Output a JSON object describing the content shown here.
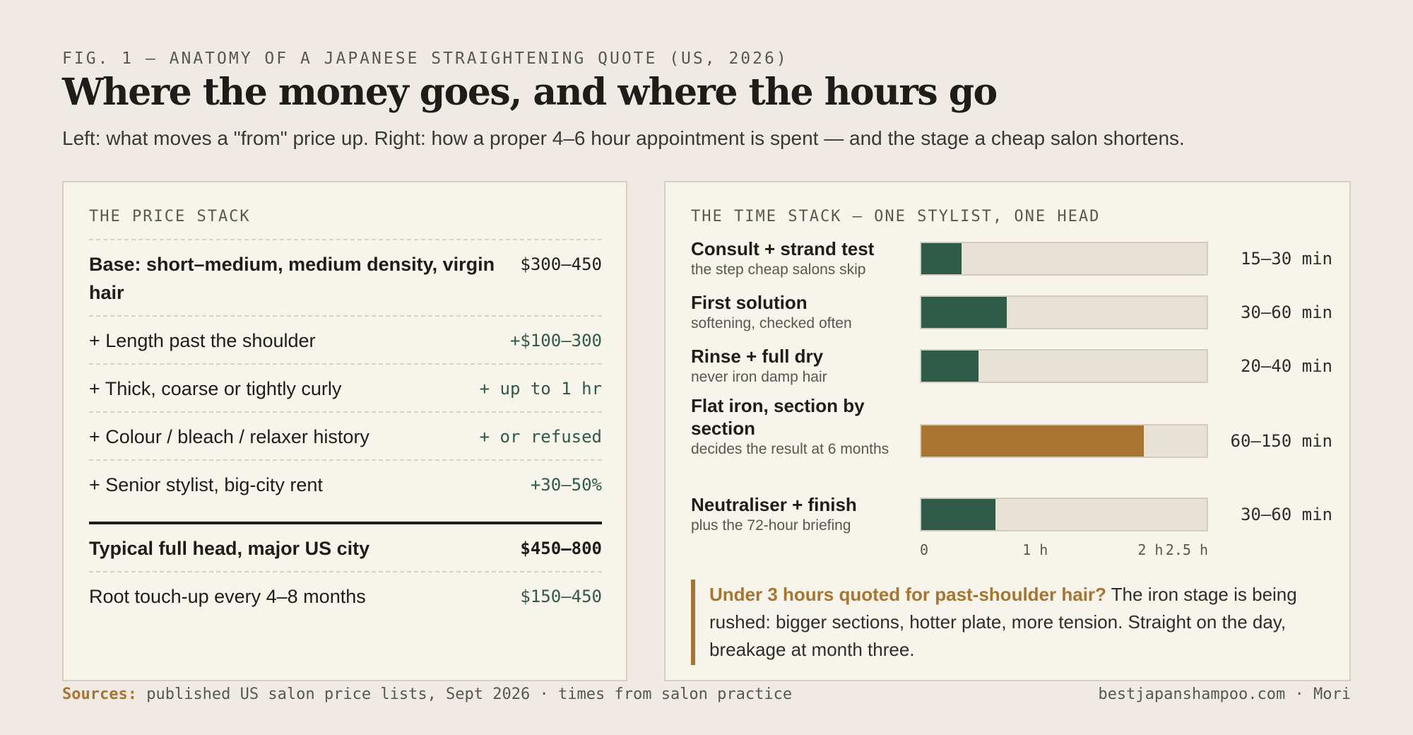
{
  "header": {
    "kicker": "FIG. 1 — ANATOMY OF A JAPANESE STRAIGHTENING QUOTE (US, 2026)",
    "title": "Where the money goes, and where the hours go",
    "subtitle": "Left: what moves a \"from\" price up. Right: how a proper 4–6 hour appointment is spent — and the stage a cheap salon shortens."
  },
  "price_stack": {
    "heading": "THE PRICE STACK",
    "rows": [
      {
        "label": "Base: short–medium, medium density, virgin hair",
        "value": "$300–450"
      },
      {
        "label": "+ Length past the shoulder",
        "value": "+$100–300"
      },
      {
        "label": "+ Thick, coarse or tightly curly",
        "value": "+ up to 1 hr"
      },
      {
        "label": "+ Colour / bleach / relaxer history",
        "value": "+ or refused"
      },
      {
        "label": "+ Senior stylist, big-city rent",
        "value": "+30–50%"
      }
    ],
    "total": {
      "label": "Typical full head, major US city",
      "value": "$450–800"
    },
    "touchup": {
      "label": "Root touch-up every 4–8 months",
      "value": "$150–450"
    }
  },
  "time_stack": {
    "heading": "THE TIME STACK — ONE STYLIST, ONE HEAD",
    "callout_emphasis": "Under 3 hours quoted for past-shoulder hair?",
    "callout_text": " The iron stage is being rushed: bigger sections, hotter plate, more tension. Straight on the day, breakage at month three."
  },
  "chart_data": {
    "type": "bar",
    "orientation": "horizontal",
    "title": "THE TIME STACK — ONE STYLIST, ONE HEAD",
    "xlabel": "",
    "ylabel": "",
    "x_unit": "hours",
    "xlim": [
      0,
      2.5
    ],
    "x_ticks": [
      0,
      1,
      2,
      2.5
    ],
    "x_tick_labels": [
      "0",
      "1 h",
      "2 h",
      "2.5 h"
    ],
    "grid": false,
    "legend": "none",
    "categories": [
      "Consult + strand test",
      "First solution",
      "Rinse + full dry",
      "Flat iron, section by section",
      "Neutraliser + finish"
    ],
    "notes": [
      "the step cheap salons skip",
      "softening, checked often",
      "never iron damp hair",
      "decides the result at 6 months",
      "plus the 72-hour briefing"
    ],
    "duration_labels": [
      "15–30 min",
      "30–60 min",
      "20–40 min",
      "60–150 min",
      "30–60 min"
    ],
    "values_min": [
      15,
      30,
      20,
      60,
      30
    ],
    "values_max": [
      30,
      60,
      40,
      150,
      60
    ],
    "values": [
      0.35,
      0.75,
      0.5,
      1.95,
      0.65
    ],
    "colors": [
      "#2e5a47",
      "#2e5a47",
      "#2e5a47",
      "#a87530",
      "#2e5a47"
    ],
    "highlight_index": 3
  },
  "footer": {
    "sources_label": "Sources:",
    "sources_text": " published US salon price lists, Sept 2026 · times from salon practice",
    "credit": "bestjapanshampoo.com · Mori"
  }
}
